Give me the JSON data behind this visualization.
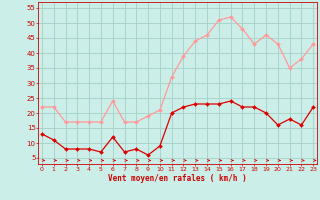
{
  "x": [
    0,
    1,
    2,
    3,
    4,
    5,
    6,
    7,
    8,
    9,
    10,
    11,
    12,
    13,
    14,
    15,
    16,
    17,
    18,
    19,
    20,
    21,
    22,
    23
  ],
  "vent_moyen": [
    13,
    11,
    8,
    8,
    8,
    7,
    12,
    7,
    8,
    6,
    9,
    20,
    22,
    23,
    23,
    23,
    24,
    22,
    22,
    20,
    16,
    18,
    16,
    22
  ],
  "rafales": [
    22,
    22,
    17,
    17,
    17,
    17,
    24,
    17,
    17,
    19,
    21,
    32,
    39,
    44,
    46,
    51,
    52,
    48,
    43,
    46,
    43,
    35,
    38,
    43
  ],
  "bg_color": "#cceee8",
  "grid_color": "#aad4cc",
  "line_moyen_color": "#dd0000",
  "line_rafales_color": "#ff9999",
  "xlabel": "Vent moyen/en rafales ( km/h )",
  "xlabel_color": "#cc0000",
  "tick_color": "#cc0000",
  "ylabel_ticks": [
    5,
    10,
    15,
    20,
    25,
    30,
    35,
    40,
    45,
    50,
    55
  ],
  "ylim": [
    3,
    57
  ],
  "xlim": [
    -0.3,
    23.3
  ]
}
